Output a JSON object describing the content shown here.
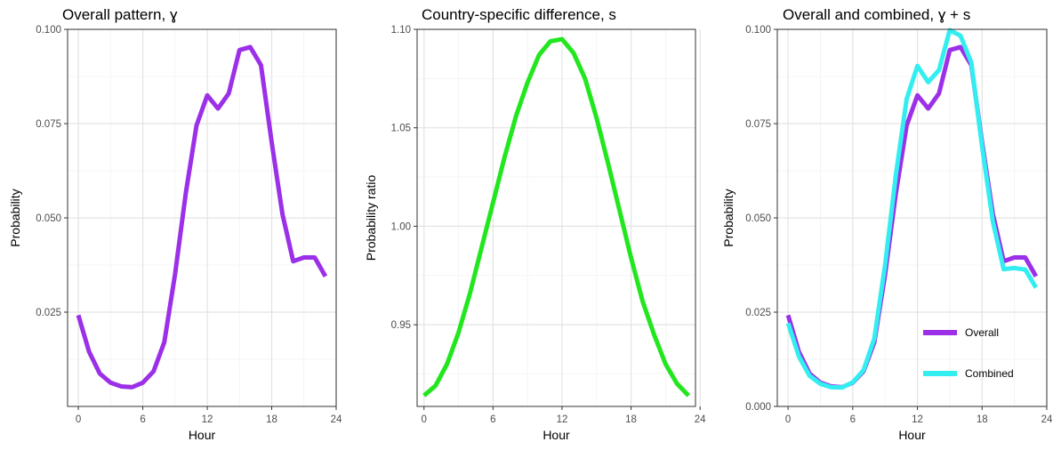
{
  "chart_data": [
    {
      "type": "line",
      "title": "Overall pattern, ɣ",
      "xlabel": "Hour",
      "ylabel": "Probability",
      "xlim": [
        -1,
        24
      ],
      "ylim": [
        0.0,
        0.1
      ],
      "xticks": [
        0,
        6,
        12,
        18,
        24
      ],
      "yticks": [
        0.025,
        0.05,
        0.075,
        0.1
      ],
      "ytick_labels": [
        "0.025",
        "0.050",
        "0.075",
        "0.100"
      ],
      "grid": true,
      "series": [
        {
          "color": "#9b30e8",
          "x": [
            0,
            1,
            2,
            3,
            4,
            5,
            6,
            7,
            8,
            9,
            10,
            11,
            12,
            13,
            14,
            15,
            16,
            17,
            18,
            19,
            20,
            21,
            22,
            23
          ],
          "values": [
            0.0242,
            0.0145,
            0.0087,
            0.0063,
            0.0053,
            0.0051,
            0.0063,
            0.0093,
            0.017,
            0.035,
            0.0565,
            0.0745,
            0.0825,
            0.079,
            0.083,
            0.0945,
            0.0953,
            0.0905,
            0.07,
            0.051,
            0.0385,
            0.0395,
            0.0395,
            0.0345
          ]
        }
      ]
    },
    {
      "type": "line",
      "title": "Country-specific difference, s",
      "xlabel": "Hour",
      "ylabel": "Probability ratio",
      "xlim": [
        -0.6,
        23.6
      ],
      "ylim": [
        0.9085,
        1.1
      ],
      "xticks": [
        0,
        6,
        12,
        18,
        24
      ],
      "yticks": [
        0.95,
        1.0,
        1.05,
        1.1
      ],
      "ytick_labels": [
        "0.95",
        "1.00",
        "1.05",
        "1.10"
      ],
      "grid": true,
      "series": [
        {
          "color": "#22e61e",
          "x": [
            0,
            1,
            2,
            3,
            4,
            5,
            6,
            7,
            8,
            9,
            10,
            11,
            12,
            13,
            14,
            15,
            16,
            17,
            18,
            19,
            20,
            21,
            22,
            23
          ],
          "values": [
            0.914,
            0.919,
            0.93,
            0.946,
            0.966,
            0.989,
            1.012,
            1.035,
            1.056,
            1.073,
            1.087,
            1.094,
            1.095,
            1.088,
            1.075,
            1.055,
            1.032,
            1.008,
            0.984,
            0.962,
            0.945,
            0.93,
            0.92,
            0.914
          ]
        }
      ]
    },
    {
      "type": "line",
      "title": "Overall and combined, ɣ + s",
      "xlabel": "Hour",
      "ylabel": "Probability",
      "xlim": [
        -1,
        24
      ],
      "ylim": [
        0.0,
        0.1
      ],
      "xticks": [
        0,
        6,
        12,
        18,
        24
      ],
      "yticks": [
        0.0,
        0.025,
        0.05,
        0.075,
        0.1
      ],
      "ytick_labels": [
        "0.000",
        "0.025",
        "0.050",
        "0.075",
        "0.100"
      ],
      "grid": true,
      "legend_position": "bottom-right",
      "series": [
        {
          "name": "Overall",
          "color": "#9b30e8",
          "x": [
            0,
            1,
            2,
            3,
            4,
            5,
            6,
            7,
            8,
            9,
            10,
            11,
            12,
            13,
            14,
            15,
            16,
            17,
            18,
            19,
            20,
            21,
            22,
            23
          ],
          "values": [
            0.0242,
            0.0145,
            0.0087,
            0.0063,
            0.0053,
            0.0051,
            0.0063,
            0.0093,
            0.017,
            0.035,
            0.0565,
            0.0745,
            0.0825,
            0.079,
            0.083,
            0.0945,
            0.0953,
            0.0905,
            0.07,
            0.051,
            0.0385,
            0.0395,
            0.0395,
            0.0345
          ]
        },
        {
          "name": "Combined",
          "color": "#33eef0",
          "x": [
            0,
            1,
            2,
            3,
            4,
            5,
            6,
            7,
            8,
            9,
            10,
            11,
            12,
            13,
            14,
            15,
            16,
            17,
            18,
            19,
            20,
            21,
            22,
            23
          ],
          "values": [
            0.0221,
            0.0133,
            0.0081,
            0.006,
            0.0051,
            0.005,
            0.0064,
            0.0096,
            0.018,
            0.0375,
            0.0614,
            0.0815,
            0.0903,
            0.086,
            0.0892,
            0.0998,
            0.0983,
            0.0912,
            0.0689,
            0.049,
            0.0364,
            0.0367,
            0.0363,
            0.0315
          ]
        }
      ]
    }
  ]
}
